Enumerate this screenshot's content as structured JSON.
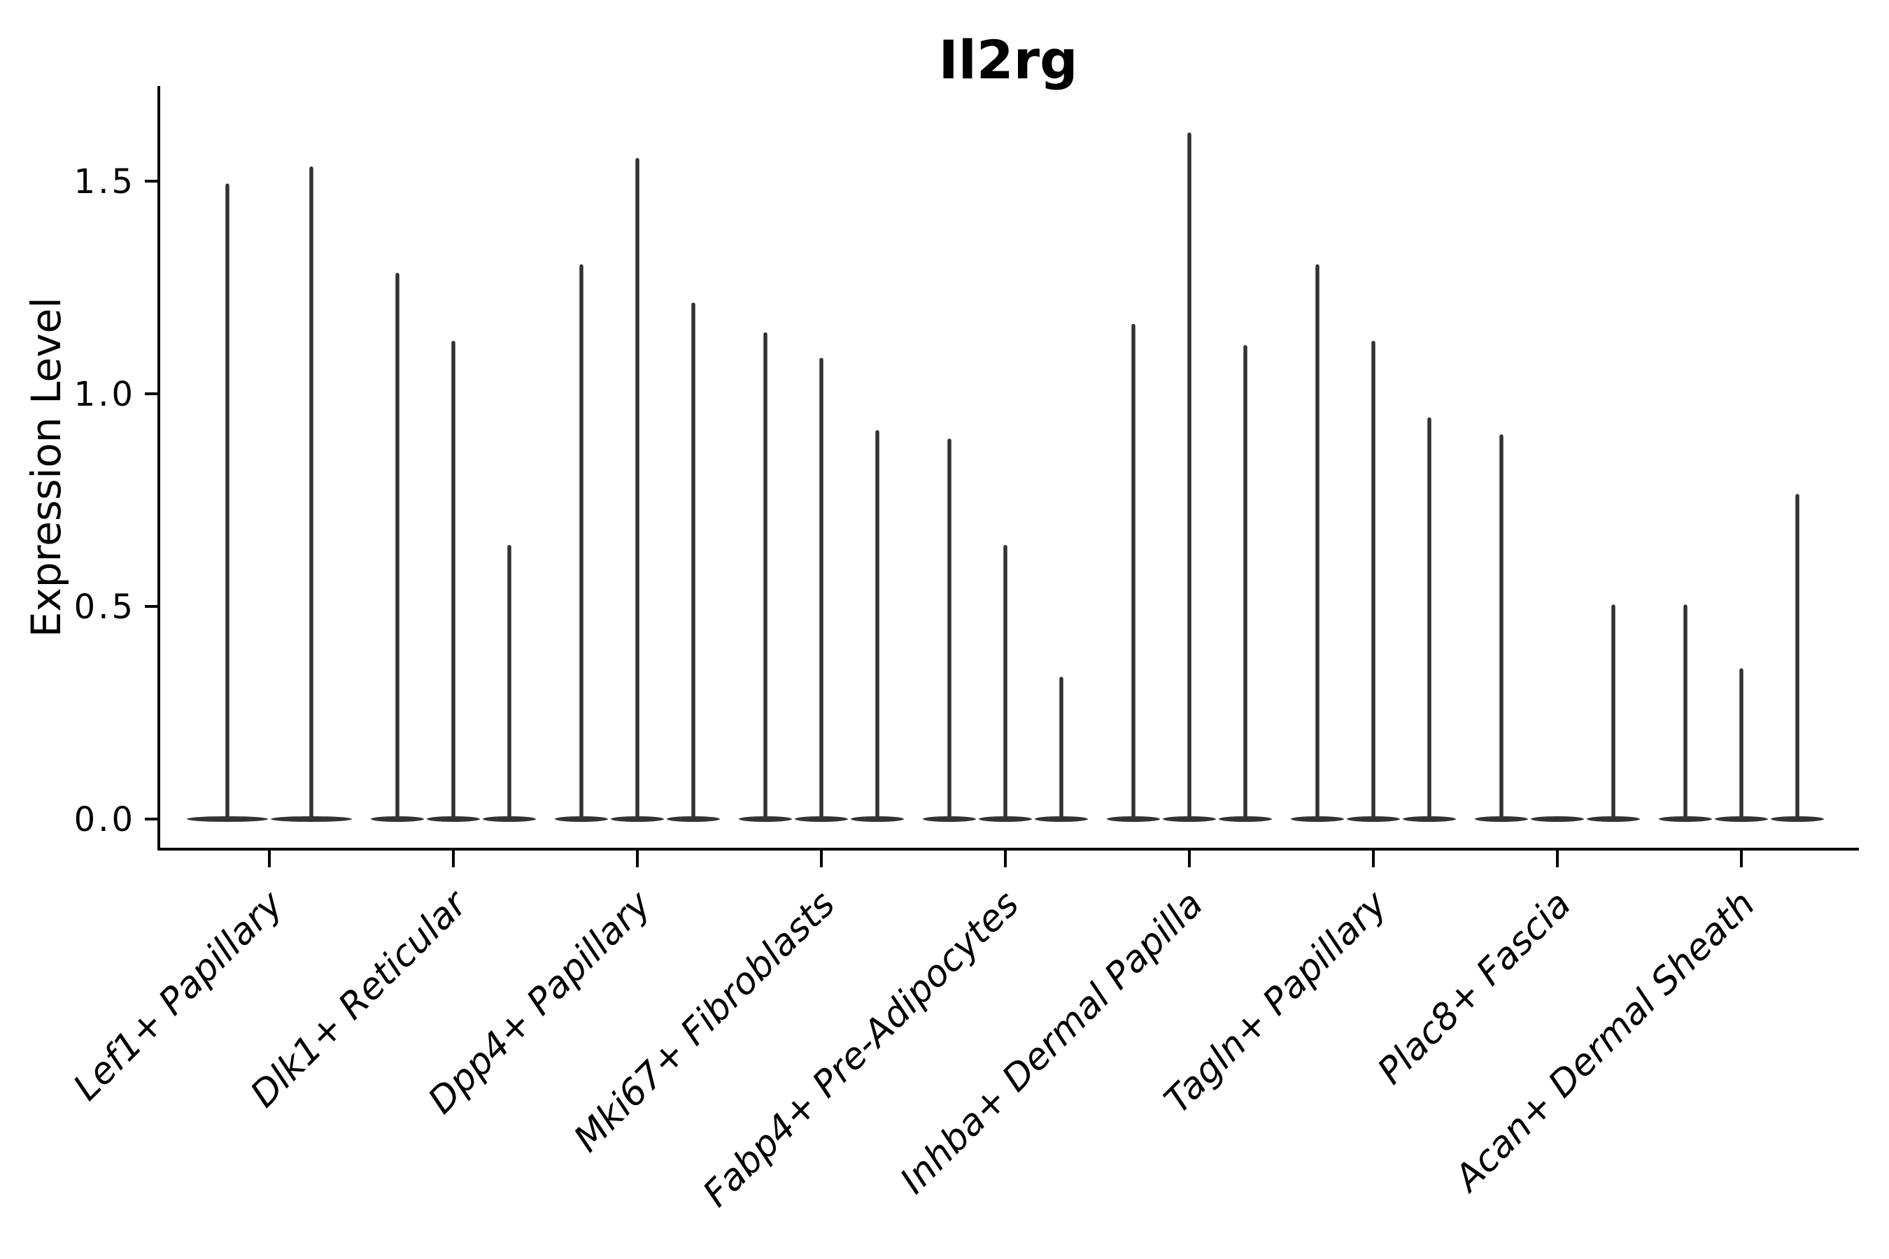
{
  "figure": {
    "background": "#ffffff"
  },
  "chart_data": {
    "type": "violin",
    "title": "Il2rg",
    "xlabel": "",
    "ylabel": "Expression Level",
    "legend_position": "none",
    "grid": false,
    "violin_stroke_color": "#333333",
    "axis_color": "#000000",
    "text_color": "#000000",
    "ylim": [
      -0.07,
      1.72
    ],
    "ytick_values": [
      0.0,
      0.5,
      1.0,
      1.5
    ],
    "ytick_labels": [
      "0.0",
      "0.5",
      "1.0",
      "1.5"
    ],
    "categories": [
      "Lef1+ Papillary",
      "Dlk1+ Reticular",
      "Dpp4+ Papillary",
      "Mki67+ Fibroblasts",
      "Fabp4+ Pre-Adipocytes",
      "Inhba+ Dermal Papilla",
      "Tagln+ Papillary",
      "Plac8+ Fascia",
      "Acan+ Dermal Sheath"
    ],
    "groups": [
      {
        "label": "Lef1+ Papillary",
        "violin_max": [
          1.49,
          1.53
        ]
      },
      {
        "label": "Dlk1+ Reticular",
        "violin_max": [
          1.28,
          1.12,
          0.64
        ]
      },
      {
        "label": "Dpp4+ Papillary",
        "violin_max": [
          1.3,
          1.55,
          1.21
        ]
      },
      {
        "label": "Mki67+ Fibroblasts",
        "violin_max": [
          1.14,
          1.08,
          0.91
        ]
      },
      {
        "label": "Fabp4+ Pre-Adipocytes",
        "violin_max": [
          0.89,
          0.64,
          0.33
        ]
      },
      {
        "label": "Inhba+ Dermal Papilla",
        "violin_max": [
          1.16,
          1.61,
          1.11
        ]
      },
      {
        "label": "Tagln+ Papillary",
        "violin_max": [
          1.3,
          1.12,
          0.94
        ]
      },
      {
        "label": "Plac8+ Fascia",
        "violin_max": [
          0.9,
          0.0,
          0.5
        ]
      },
      {
        "label": "Acan+ Dermal Sheath",
        "violin_max": [
          0.5,
          0.35,
          0.76
        ]
      }
    ],
    "description": "Violin plot of Il2rg expression; each violin is a near-zero-width density at 0 with a thin spike up to its maximum expression value."
  }
}
